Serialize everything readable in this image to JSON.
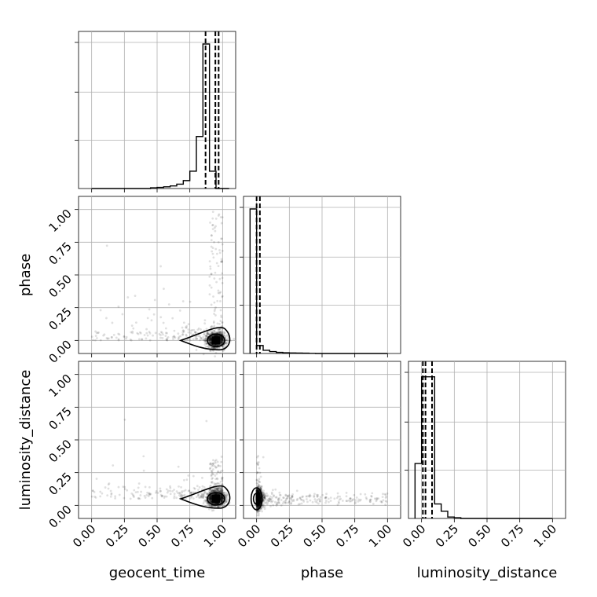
{
  "chart_data": {
    "type": "scatter",
    "parameters": [
      "geocent_time",
      "phase",
      "luminosity_distance"
    ],
    "tick_labels": [
      "0.00",
      "0.25",
      "0.50",
      "0.75",
      "1.00"
    ],
    "range": [
      -0.1,
      1.1
    ],
    "histograms": {
      "geocent_time": {
        "bins": [
          0.0,
          0.05,
          0.1,
          0.15,
          0.2,
          0.25,
          0.3,
          0.35,
          0.4,
          0.45,
          0.5,
          0.55,
          0.6,
          0.65,
          0.7,
          0.75,
          0.8,
          0.85,
          0.9,
          0.95,
          1.0,
          1.05
        ],
        "counts": [
          0,
          0,
          0,
          0,
          0,
          0,
          0,
          0,
          0,
          0.005,
          0.008,
          0.012,
          0.018,
          0.03,
          0.055,
          0.12,
          0.36,
          1.0,
          0.12,
          0,
          0
        ],
        "quantiles": [
          0.87,
          0.945,
          0.97
        ]
      },
      "phase": {
        "bins": [
          -0.05,
          0.0,
          0.05,
          0.1,
          0.15,
          0.2,
          0.25,
          0.3,
          0.35,
          0.4,
          0.45,
          0.5,
          0.55,
          0.6,
          0.65,
          0.7,
          0.75,
          0.8,
          0.85,
          0.9,
          0.95,
          1.0
        ],
        "counts": [
          1.0,
          0.055,
          0.022,
          0.013,
          0.008,
          0.005,
          0.004,
          0.003,
          0.002,
          0.001,
          0,
          0,
          0,
          0,
          0,
          0,
          0,
          0,
          0,
          0,
          0
        ],
        "quantiles": [
          0.0,
          0.025
        ]
      },
      "luminosity_distance": {
        "bins": [
          -0.05,
          0.0,
          0.05,
          0.1,
          0.15,
          0.2,
          0.25,
          0.3,
          0.35,
          0.4,
          0.45,
          0.5,
          0.55,
          0.6,
          0.65,
          0.7,
          0.75,
          0.8,
          0.85,
          0.9,
          0.95,
          1.0
        ],
        "counts": [
          0.38,
          0.98,
          0.98,
          0.1,
          0.05,
          0.01,
          0.005,
          0,
          0,
          0,
          0,
          0,
          0,
          0,
          0,
          0,
          0,
          0,
          0,
          0,
          0
        ],
        "quantiles": [
          0.01,
          0.03,
          0.08
        ]
      }
    },
    "pairs": [
      {
        "x": "geocent_time",
        "y": "phase",
        "mode": [
          0.95,
          0.0
        ]
      },
      {
        "x": "geocent_time",
        "y": "luminosity_distance",
        "mode": [
          0.95,
          0.05
        ]
      },
      {
        "x": "phase",
        "y": "luminosity_distance",
        "mode": [
          0.0,
          0.05
        ]
      }
    ],
    "grid": true
  }
}
